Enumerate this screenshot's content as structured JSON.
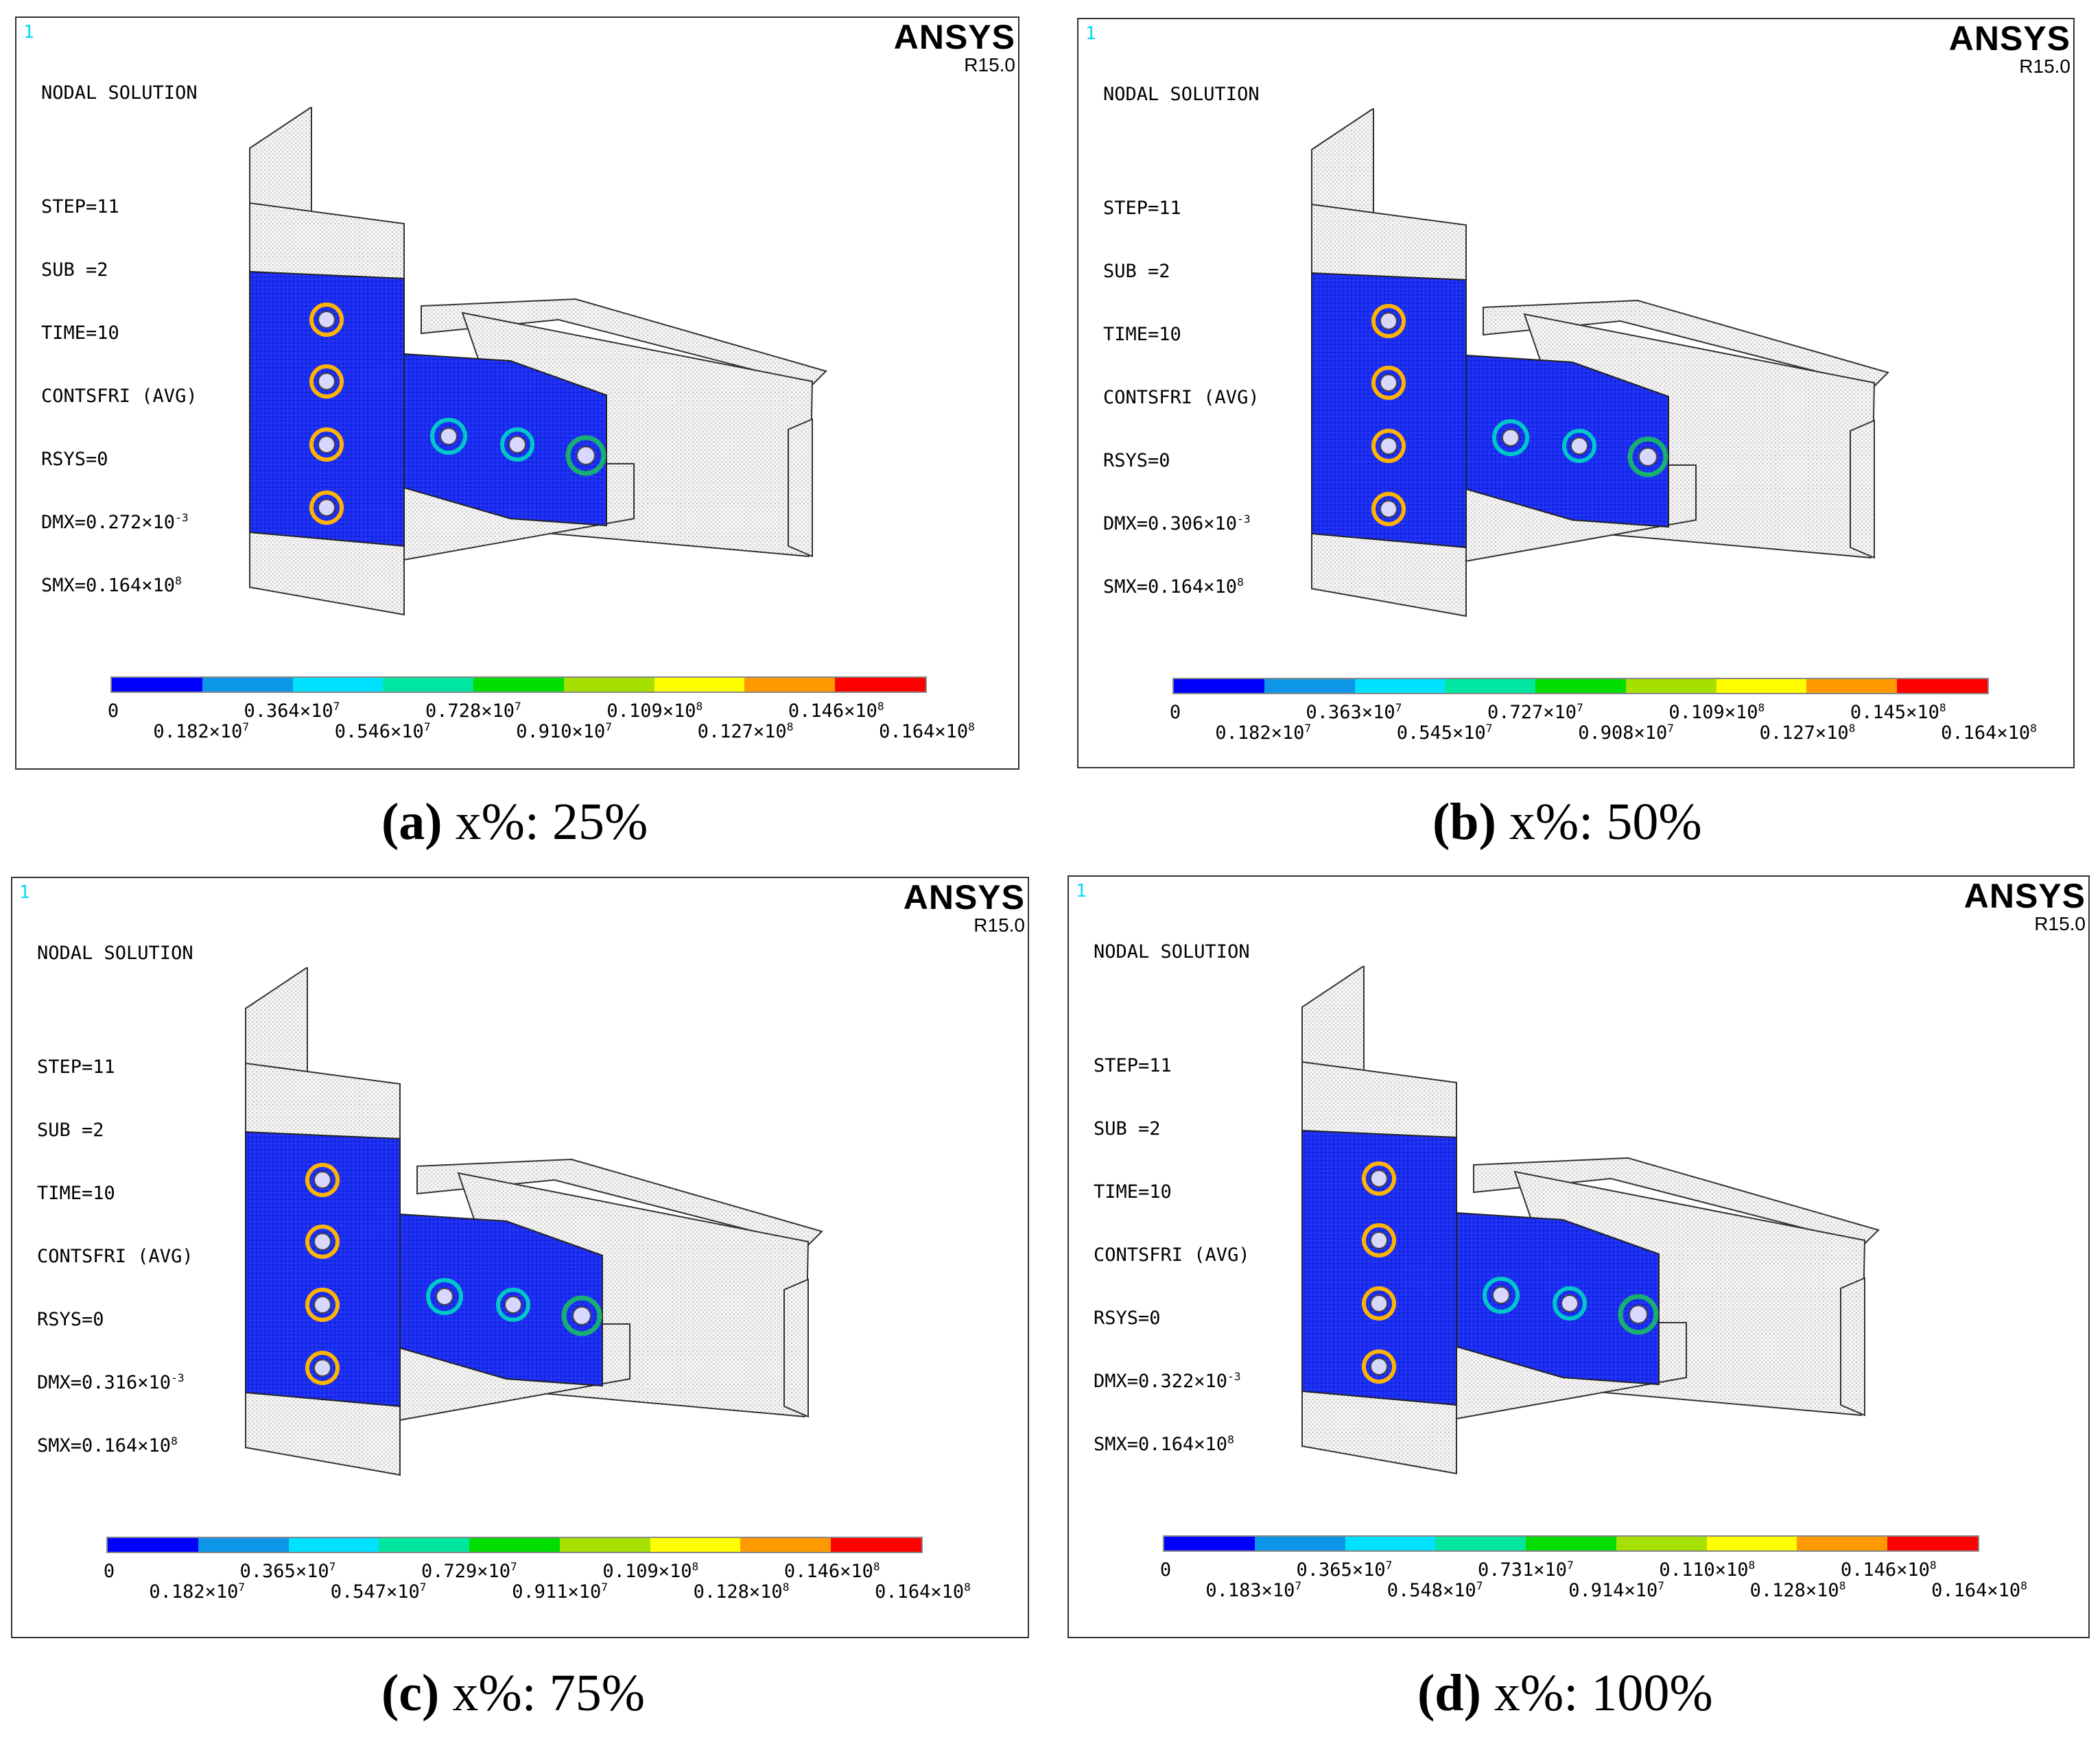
{
  "panels": [
    {
      "id": "a",
      "window_number": "1",
      "brand": "ANSYS",
      "version": "R15.0",
      "info": {
        "title": "NODAL SOLUTION",
        "step": "STEP=11",
        "sub": "SUB =2",
        "time": "TIME=10",
        "result": "CONTSFRI (AVG)",
        "rsys": "RSYS=0",
        "dmx_prefix": "DMX=0.272×10",
        "dmx_exp": "-3",
        "smx_prefix": "SMX=0.164×10",
        "smx_exp": "8"
      },
      "legend_top": [
        {
          "m": "0",
          "e": ""
        },
        {
          "m": "0.364×10",
          "e": "7"
        },
        {
          "m": "0.728×10",
          "e": "7"
        },
        {
          "m": "0.109×10",
          "e": "8"
        },
        {
          "m": "0.146×10",
          "e": "8"
        }
      ],
      "legend_bottom": [
        {
          "m": "0.182×10",
          "e": "7"
        },
        {
          "m": "0.546×10",
          "e": "7"
        },
        {
          "m": "0.910×10",
          "e": "7"
        },
        {
          "m": "0.127×10",
          "e": "8"
        },
        {
          "m": "0.164×10",
          "e": "8"
        }
      ],
      "caption": {
        "label": "(a)",
        "text": " x%: 25%"
      }
    },
    {
      "id": "b",
      "window_number": "1",
      "brand": "ANSYS",
      "version": "R15.0",
      "info": {
        "title": "NODAL SOLUTION",
        "step": "STEP=11",
        "sub": "SUB =2",
        "time": "TIME=10",
        "result": "CONTSFRI (AVG)",
        "rsys": "RSYS=0",
        "dmx_prefix": "DMX=0.306×10",
        "dmx_exp": "-3",
        "smx_prefix": "SMX=0.164×10",
        "smx_exp": "8"
      },
      "legend_top": [
        {
          "m": "0",
          "e": ""
        },
        {
          "m": "0.363×10",
          "e": "7"
        },
        {
          "m": "0.727×10",
          "e": "7"
        },
        {
          "m": "0.109×10",
          "e": "8"
        },
        {
          "m": "0.145×10",
          "e": "8"
        }
      ],
      "legend_bottom": [
        {
          "m": "0.182×10",
          "e": "7"
        },
        {
          "m": "0.545×10",
          "e": "7"
        },
        {
          "m": "0.908×10",
          "e": "7"
        },
        {
          "m": "0.127×10",
          "e": "8"
        },
        {
          "m": "0.164×10",
          "e": "8"
        }
      ],
      "caption": {
        "label": "(b)",
        "text": " x%: 50%"
      }
    },
    {
      "id": "c",
      "window_number": "1",
      "brand": "ANSYS",
      "version": "R15.0",
      "info": {
        "title": "NODAL SOLUTION",
        "step": "STEP=11",
        "sub": "SUB =2",
        "time": "TIME=10",
        "result": "CONTSFRI (AVG)",
        "rsys": "RSYS=0",
        "dmx_prefix": "DMX=0.316×10",
        "dmx_exp": "-3",
        "smx_prefix": "SMX=0.164×10",
        "smx_exp": "8"
      },
      "legend_top": [
        {
          "m": "0",
          "e": ""
        },
        {
          "m": "0.365×10",
          "e": "7"
        },
        {
          "m": "0.729×10",
          "e": "7"
        },
        {
          "m": "0.109×10",
          "e": "8"
        },
        {
          "m": "0.146×10",
          "e": "8"
        }
      ],
      "legend_bottom": [
        {
          "m": "0.182×10",
          "e": "7"
        },
        {
          "m": "0.547×10",
          "e": "7"
        },
        {
          "m": "0.911×10",
          "e": "7"
        },
        {
          "m": "0.128×10",
          "e": "8"
        },
        {
          "m": "0.164×10",
          "e": "8"
        }
      ],
      "caption": {
        "label": "(c)",
        "text": " x%: 75%"
      }
    },
    {
      "id": "d",
      "window_number": "1",
      "brand": "ANSYS",
      "version": "R15.0",
      "info": {
        "title": "NODAL SOLUTION",
        "step": "STEP=11",
        "sub": "SUB =2",
        "time": "TIME=10",
        "result": "CONTSFRI (AVG)",
        "rsys": "RSYS=0",
        "dmx_prefix": "DMX=0.322×10",
        "dmx_exp": "-3",
        "smx_prefix": "SMX=0.164×10",
        "smx_exp": "8"
      },
      "legend_top": [
        {
          "m": "0",
          "e": ""
        },
        {
          "m": "0.365×10",
          "e": "7"
        },
        {
          "m": "0.731×10",
          "e": "7"
        },
        {
          "m": "0.110×10",
          "e": "8"
        },
        {
          "m": "0.146×10",
          "e": "8"
        }
      ],
      "legend_bottom": [
        {
          "m": "0.183×10",
          "e": "7"
        },
        {
          "m": "0.548×10",
          "e": "7"
        },
        {
          "m": "0.914×10",
          "e": "7"
        },
        {
          "m": "0.128×10",
          "e": "8"
        },
        {
          "m": "0.164×10",
          "e": "8"
        }
      ],
      "caption": {
        "label": "(d)",
        "text": " x%: 100%"
      }
    }
  ],
  "colorbar": [
    "#0000ff",
    "#0d95e8",
    "#00e0ff",
    "#00e6a0",
    "#00dd00",
    "#a6e000",
    "#ffff00",
    "#ff9900",
    "#ff0000"
  ]
}
